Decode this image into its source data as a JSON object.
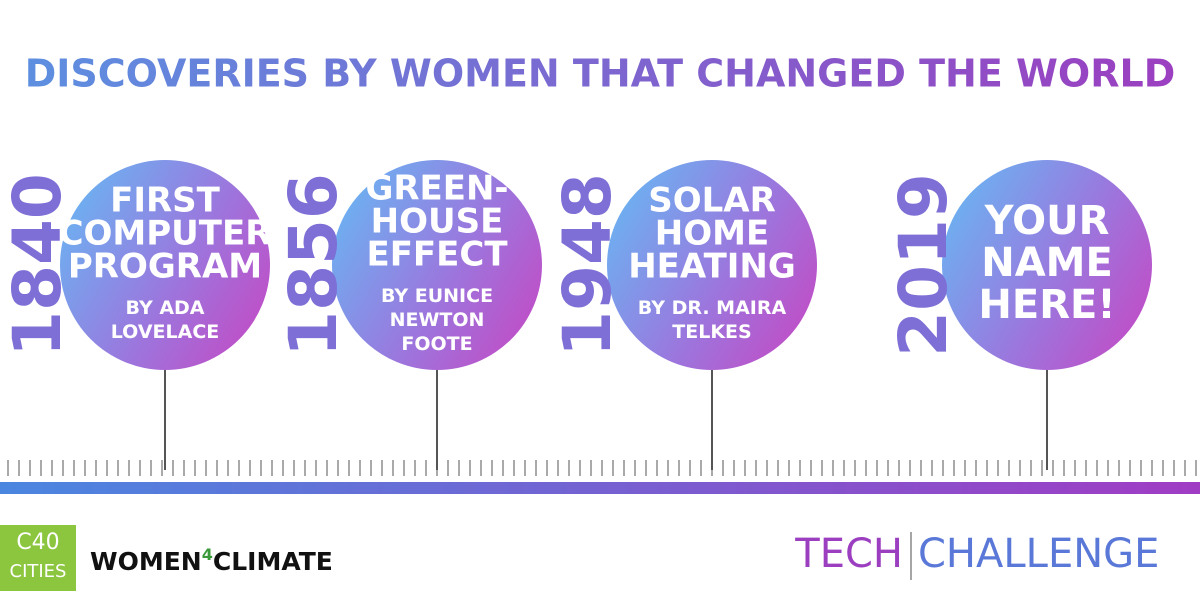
{
  "header": {
    "title": "DISCOVERIES BY WOMEN THAT CHANGED THE WORLD"
  },
  "timeline": [
    {
      "year": "1840",
      "title_lines": [
        "FIRST",
        "COMPUTER",
        "PROGRAM"
      ],
      "by_lines": [
        "BY ADA",
        "LOVELACE"
      ]
    },
    {
      "year": "1856",
      "title_lines": [
        "GREEN-",
        "HOUSE",
        "EFFECT"
      ],
      "by_lines": [
        "BY EUNICE",
        "NEWTON",
        "FOOTE"
      ]
    },
    {
      "year": "1948",
      "title_lines": [
        "SOLAR",
        "HOME",
        "HEATING"
      ],
      "by_lines": [
        "BY DR. MAIRA",
        "TELKES"
      ]
    },
    {
      "year": "2019",
      "title_lines": [
        "YOUR",
        "NAME",
        "HERE!"
      ],
      "by_lines": []
    }
  ],
  "footer": {
    "c40_top": "C40",
    "c40_bottom": "CITIES",
    "w4c_left": "WOMEN",
    "w4c_mid": "4",
    "w4c_right": "CLIMATE",
    "tech": "TECH",
    "challenge": "CHALLENGE"
  }
}
